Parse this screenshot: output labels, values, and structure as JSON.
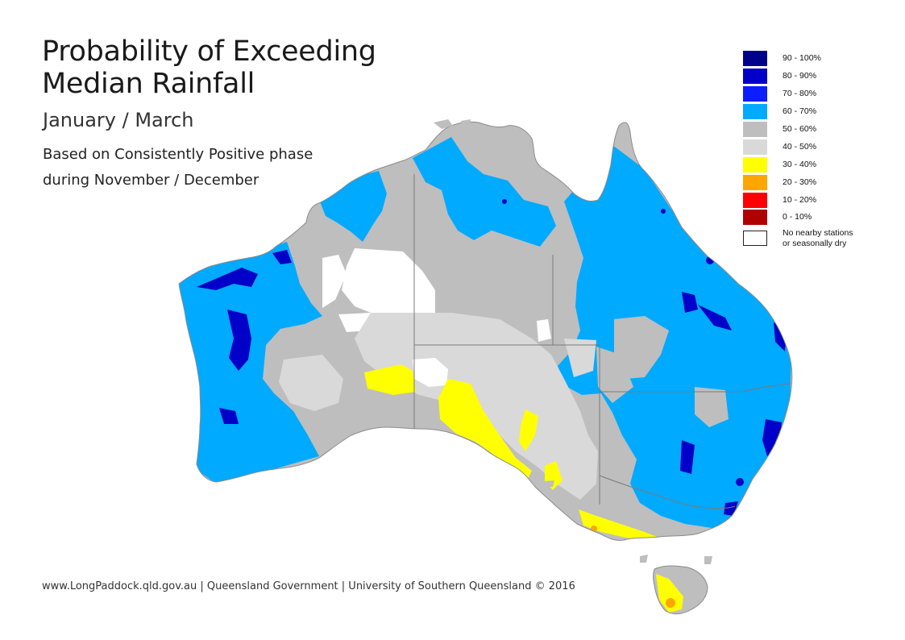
{
  "title_line1": "Probability of Exceeding",
  "title_line2": "Median Rainfall",
  "period": "January / March",
  "phase_line1": "Based on Consistently Positive phase",
  "phase_line2": "during November / December",
  "legend": [
    {
      "label": "90 - 100%",
      "color": "#00008b"
    },
    {
      "label": "80 - 90%",
      "color": "#0000c8"
    },
    {
      "label": "70 - 80%",
      "color": "#0a1eff"
    },
    {
      "label": "60 - 70%",
      "color": "#00aaff"
    },
    {
      "label": "50 - 60%",
      "color": "#bebebe"
    },
    {
      "label": "40 - 50%",
      "color": "#d9d9d9"
    },
    {
      "label": "30 - 40%",
      "color": "#ffff00"
    },
    {
      "label": "20 - 30%",
      "color": "#ffa500"
    },
    {
      "label": "10 - 20%",
      "color": "#ff0000"
    },
    {
      "label": "0 - 10%",
      "color": "#b00000"
    },
    {
      "label_line1": "No nearby stations",
      "label_line2": "or seasonally dry",
      "color": "#ffffff"
    }
  ],
  "footer": "www.LongPaddock.qld.gov.au | Queensland Government | University of Southern Queensland © 2016"
}
